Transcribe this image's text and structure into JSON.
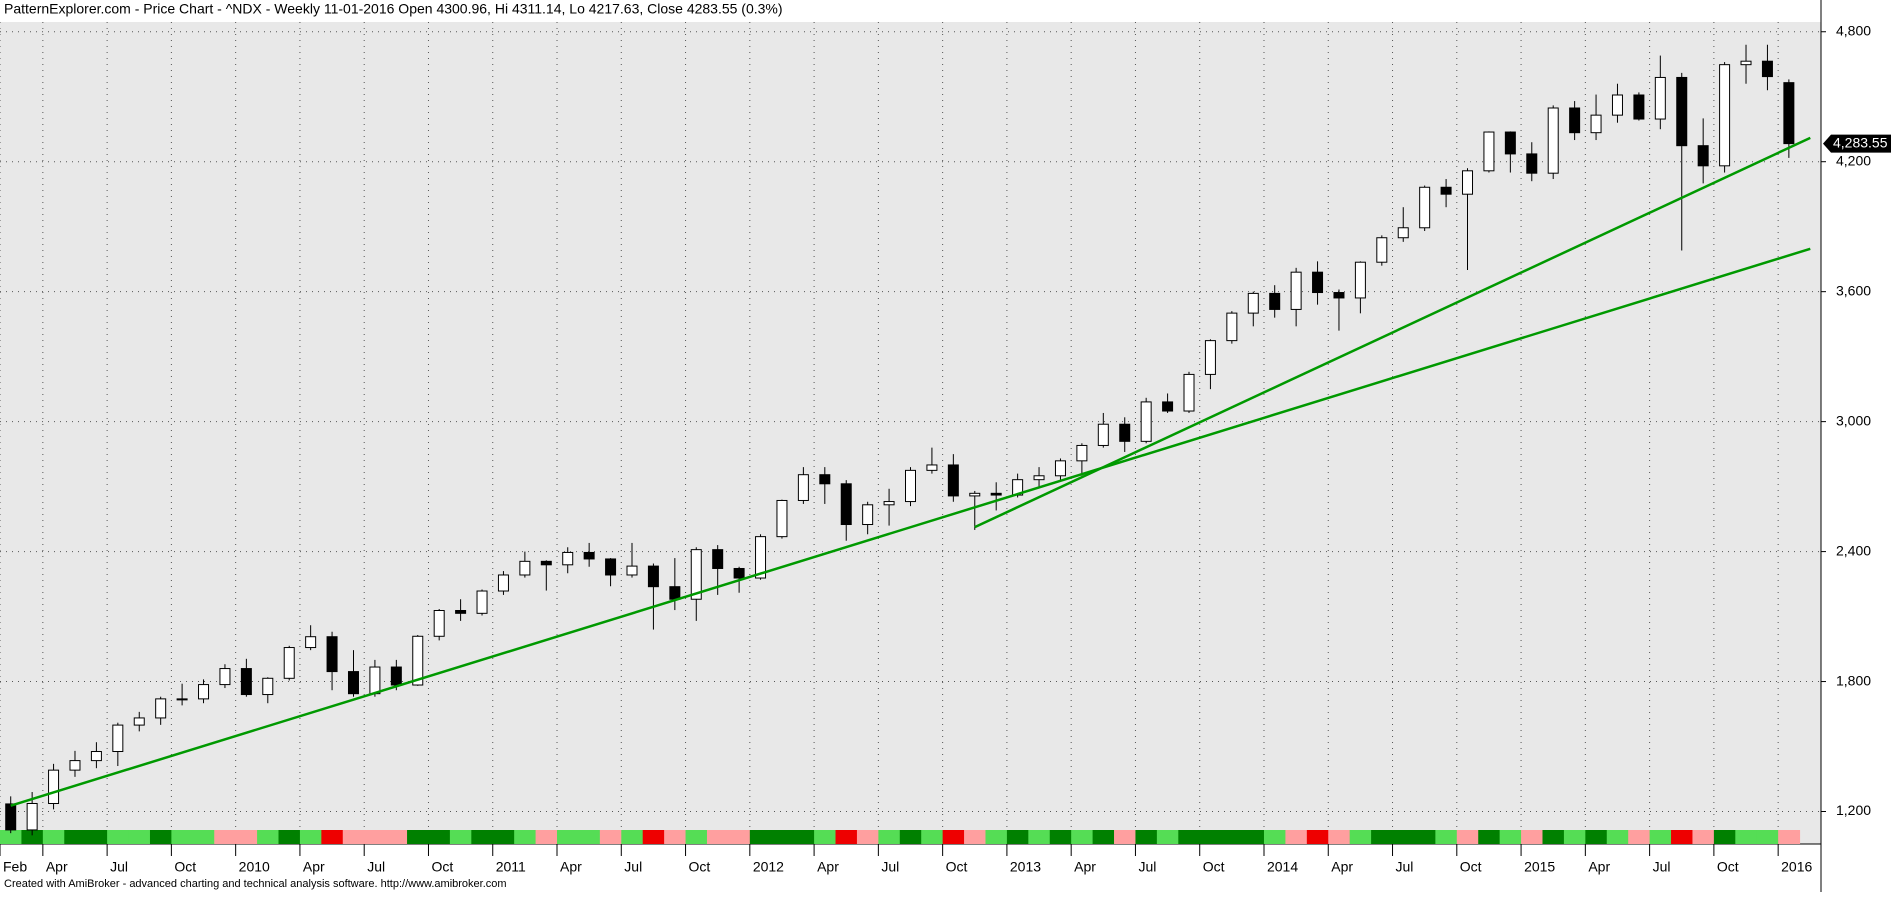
{
  "chart_data": {
    "type": "candlestick",
    "title": "PatternExplorer.com - Price Chart - ^NDX - Weekly 11-01-2016 Open 4300.96, Hi 4311.14, Lo 4217.63, Close 4283.55 (0.3%)",
    "footer": "Created with AmiBroker - advanced charting and technical analysis software. http://www.amibroker.com",
    "x": [
      "2009-02",
      "2009-03",
      "2009-04",
      "2009-05",
      "2009-06",
      "2009-07",
      "2009-08",
      "2009-09",
      "2009-10",
      "2009-11",
      "2009-12",
      "2010-01",
      "2010-02",
      "2010-03",
      "2010-04",
      "2010-05",
      "2010-06",
      "2010-07",
      "2010-08",
      "2010-09",
      "2010-10",
      "2010-11",
      "2010-12",
      "2011-01",
      "2011-02",
      "2011-03",
      "2011-04",
      "2011-05",
      "2011-06",
      "2011-07",
      "2011-08",
      "2011-09",
      "2011-10",
      "2011-11",
      "2011-12",
      "2012-01",
      "2012-02",
      "2012-03",
      "2012-04",
      "2012-05",
      "2012-06",
      "2012-07",
      "2012-08",
      "2012-09",
      "2012-10",
      "2012-11",
      "2012-12",
      "2013-01",
      "2013-02",
      "2013-03",
      "2013-04",
      "2013-05",
      "2013-06",
      "2013-07",
      "2013-08",
      "2013-09",
      "2013-10",
      "2013-11",
      "2013-12",
      "2014-01",
      "2014-02",
      "2014-03",
      "2014-04",
      "2014-05",
      "2014-06",
      "2014-07",
      "2014-08",
      "2014-09",
      "2014-10",
      "2014-11",
      "2014-12",
      "2015-01",
      "2015-02",
      "2015-03",
      "2015-04",
      "2015-05",
      "2015-06",
      "2015-07",
      "2015-08",
      "2015-09",
      "2015-10",
      "2015-11",
      "2015-12",
      "2016-01"
    ],
    "open": [
      1235,
      1115,
      1237,
      1391,
      1435,
      1477,
      1599,
      1632,
      1720,
      1720,
      1786,
      1860,
      1740,
      1815,
      1957,
      2007,
      1846,
      1744,
      1867,
      1784,
      2009,
      2128,
      2115,
      2218,
      2292,
      2355,
      2339,
      2396,
      2366,
      2292,
      2333,
      2238,
      2180,
      2409,
      2322,
      2278,
      2469,
      2636,
      2755,
      2713,
      2525,
      2616,
      2631,
      2775,
      2800,
      2657,
      2669,
      2661,
      2732,
      2750,
      2819,
      2890,
      2988,
      2909,
      3091,
      3049,
      3218,
      3374,
      3501,
      3592,
      3518,
      3690,
      3596,
      3571,
      3736,
      3849,
      3895,
      4082,
      4050,
      4158,
      4337,
      4236,
      4147,
      4448,
      4334,
      4415,
      4508,
      4397,
      4589,
      4274,
      4181,
      4648,
      4664,
      4565
    ],
    "high": [
      1270,
      1290,
      1420,
      1480,
      1520,
      1610,
      1660,
      1730,
      1790,
      1810,
      1880,
      1905,
      1820,
      1965,
      2060,
      2030,
      1945,
      1900,
      1900,
      2015,
      2135,
      2180,
      2225,
      2310,
      2400,
      2360,
      2420,
      2440,
      2370,
      2440,
      2345,
      2370,
      2420,
      2430,
      2330,
      2480,
      2640,
      2790,
      2790,
      2730,
      2630,
      2690,
      2790,
      2880,
      2850,
      2680,
      2720,
      2760,
      2790,
      2830,
      2900,
      3040,
      3020,
      3110,
      3130,
      3230,
      3380,
      3510,
      3600,
      3630,
      3710,
      3740,
      3610,
      3740,
      3860,
      3990,
      4090,
      4120,
      4170,
      4340,
      4340,
      4290,
      4460,
      4480,
      4510,
      4560,
      4520,
      4690,
      4610,
      4400,
      4660,
      4740,
      4740,
      4580
    ],
    "low": [
      1100,
      1090,
      1210,
      1360,
      1400,
      1410,
      1570,
      1600,
      1690,
      1700,
      1770,
      1730,
      1700,
      1805,
      1945,
      1760,
      1730,
      1730,
      1760,
      1780,
      1990,
      2080,
      2105,
      2200,
      2280,
      2220,
      2300,
      2330,
      2240,
      2280,
      2040,
      2130,
      2080,
      2200,
      2210,
      2270,
      2460,
      2620,
      2620,
      2450,
      2480,
      2520,
      2610,
      2760,
      2630,
      2500,
      2590,
      2650,
      2700,
      2730,
      2750,
      2880,
      2860,
      2900,
      3040,
      3040,
      3150,
      3360,
      3440,
      3480,
      3440,
      3540,
      3420,
      3500,
      3720,
      3830,
      3880,
      3990,
      3700,
      4150,
      4150,
      4110,
      4120,
      4300,
      4300,
      4380,
      4390,
      4350,
      3790,
      4100,
      4150,
      4560,
      4530,
      4217.63
    ],
    "close": [
      1115,
      1237,
      1391,
      1435,
      1477,
      1599,
      1632,
      1720,
      1720,
      1786,
      1860,
      1740,
      1815,
      1957,
      2007,
      1846,
      1744,
      1867,
      1784,
      2009,
      2128,
      2115,
      2218,
      2292,
      2355,
      2339,
      2396,
      2366,
      2292,
      2333,
      2238,
      2180,
      2409,
      2322,
      2278,
      2469,
      2636,
      2755,
      2713,
      2525,
      2616,
      2631,
      2775,
      2800,
      2657,
      2669,
      2661,
      2732,
      2750,
      2819,
      2890,
      2988,
      2909,
      3091,
      3049,
      3218,
      3374,
      3501,
      3592,
      3518,
      3690,
      3596,
      3571,
      3736,
      3849,
      3895,
      4082,
      4050,
      4158,
      4337,
      4236,
      4147,
      4448,
      4334,
      4415,
      4508,
      4397,
      4589,
      4274,
      4181,
      4648,
      4664,
      4593,
      4283.55
    ],
    "signal_colors": [
      "#55dd55",
      "#008000",
      "#55dd55",
      "#008000",
      "#008000",
      "#55dd55",
      "#55dd55",
      "#008000",
      "#55dd55",
      "#55dd55",
      "#ff9f9f",
      "#ff9f9f",
      "#55dd55",
      "#008000",
      "#55dd55",
      "#ee0000",
      "#ff9f9f",
      "#ff9f9f",
      "#ff9f9f",
      "#008000",
      "#008000",
      "#55dd55",
      "#008000",
      "#008000",
      "#55dd55",
      "#ff9f9f",
      "#55dd55",
      "#55dd55",
      "#ff9f9f",
      "#55dd55",
      "#ee0000",
      "#ff9f9f",
      "#55dd55",
      "#ff9f9f",
      "#ff9f9f",
      "#008000",
      "#008000",
      "#008000",
      "#55dd55",
      "#ee0000",
      "#ff9f9f",
      "#55dd55",
      "#008000",
      "#55dd55",
      "#ee0000",
      "#ff9f9f",
      "#55dd55",
      "#008000",
      "#55dd55",
      "#008000",
      "#55dd55",
      "#008000",
      "#ff9f9f",
      "#008000",
      "#55dd55",
      "#008000",
      "#008000",
      "#008000",
      "#008000",
      "#55dd55",
      "#ff9f9f",
      "#ee0000",
      "#ff9f9f",
      "#55dd55",
      "#008000",
      "#008000",
      "#008000",
      "#55dd55",
      "#ff9f9f",
      "#008000",
      "#55dd55",
      "#ff9f9f",
      "#008000",
      "#55dd55",
      "#008000",
      "#55dd55",
      "#ff9f9f",
      "#55dd55",
      "#ee0000",
      "#ff9f9f",
      "#008000",
      "#55dd55",
      "#55dd55",
      "#ff9f9f"
    ],
    "trendlines": [
      {
        "color": "#009900",
        "x": [
          "2009-02",
          "2016-02"
        ],
        "values": [
          1227,
          3798
        ]
      },
      {
        "color": "#009900",
        "x": [
          "2012-11",
          "2016-02"
        ],
        "values": [
          2513,
          4310
        ]
      }
    ],
    "last_price": {
      "value": 4283.55,
      "label": "4,283.55"
    },
    "xlim": [
      "2009-02",
      "2016-03"
    ],
    "xticks": [
      {
        "value": "2009-02",
        "label": "Feb"
      },
      {
        "value": "2009-04",
        "label": "Apr"
      },
      {
        "value": "2009-07",
        "label": "Jul"
      },
      {
        "value": "2009-10",
        "label": "Oct"
      },
      {
        "value": "2010-01",
        "label": "2010"
      },
      {
        "value": "2010-04",
        "label": "Apr"
      },
      {
        "value": "2010-07",
        "label": "Jul"
      },
      {
        "value": "2010-10",
        "label": "Oct"
      },
      {
        "value": "2011-01",
        "label": "2011"
      },
      {
        "value": "2011-04",
        "label": "Apr"
      },
      {
        "value": "2011-07",
        "label": "Jul"
      },
      {
        "value": "2011-10",
        "label": "Oct"
      },
      {
        "value": "2012-01",
        "label": "2012"
      },
      {
        "value": "2012-04",
        "label": "Apr"
      },
      {
        "value": "2012-07",
        "label": "Jul"
      },
      {
        "value": "2012-10",
        "label": "Oct"
      },
      {
        "value": "2013-01",
        "label": "2013"
      },
      {
        "value": "2013-04",
        "label": "Apr"
      },
      {
        "value": "2013-07",
        "label": "Jul"
      },
      {
        "value": "2013-10",
        "label": "Oct"
      },
      {
        "value": "2014-01",
        "label": "2014"
      },
      {
        "value": "2014-04",
        "label": "Apr"
      },
      {
        "value": "2014-07",
        "label": "Jul"
      },
      {
        "value": "2014-10",
        "label": "Oct"
      },
      {
        "value": "2015-01",
        "label": "2015"
      },
      {
        "value": "2015-04",
        "label": "Apr"
      },
      {
        "value": "2015-07",
        "label": "Jul"
      },
      {
        "value": "2015-10",
        "label": "Oct"
      },
      {
        "value": "2016-01",
        "label": "2016"
      }
    ],
    "ylim": [
      1050,
      4845
    ],
    "yticks": [
      {
        "value": 1200,
        "label": "1,200"
      },
      {
        "value": 1800,
        "label": "1,800"
      },
      {
        "value": 2400,
        "label": "2,400"
      },
      {
        "value": 3000,
        "label": "3,000"
      },
      {
        "value": 3600,
        "label": "3,600"
      },
      {
        "value": 4200,
        "label": "4,200"
      },
      {
        "value": 4800,
        "label": "4,800"
      }
    ],
    "grid": true
  }
}
